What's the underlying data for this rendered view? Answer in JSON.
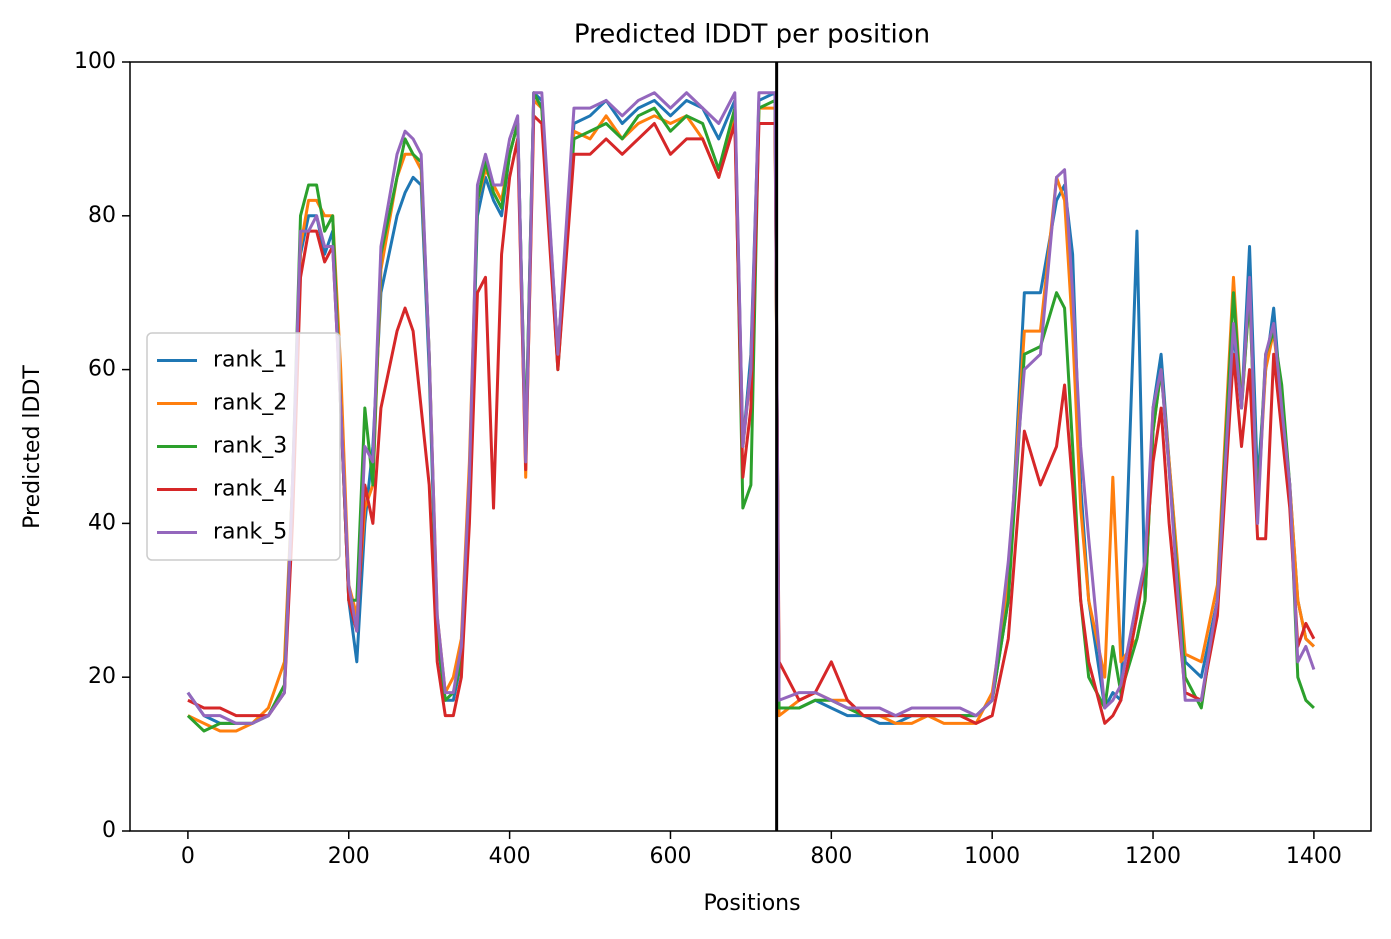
{
  "chart_data": {
    "type": "line",
    "title": "Predicted lDDT per position",
    "xlabel": "Positions",
    "ylabel": "Predicted lDDT",
    "xlim": [
      -72,
      1471
    ],
    "ylim": [
      0,
      100
    ],
    "xticks": [
      0,
      200,
      400,
      600,
      800,
      1000,
      1200,
      1400
    ],
    "yticks": [
      0,
      20,
      40,
      60,
      80,
      100
    ],
    "legend": "center left",
    "vline": 732,
    "x": [
      0,
      20,
      40,
      60,
      80,
      100,
      120,
      130,
      140,
      150,
      160,
      170,
      180,
      190,
      200,
      210,
      220,
      230,
      240,
      260,
      270,
      280,
      290,
      300,
      310,
      320,
      330,
      340,
      350,
      360,
      370,
      380,
      390,
      400,
      410,
      420,
      430,
      440,
      460,
      480,
      500,
      520,
      540,
      560,
      580,
      600,
      620,
      640,
      660,
      680,
      690,
      700,
      710,
      730,
      735,
      760,
      780,
      800,
      820,
      840,
      860,
      880,
      900,
      920,
      940,
      960,
      980,
      1000,
      1020,
      1040,
      1060,
      1080,
      1090,
      1100,
      1110,
      1120,
      1140,
      1150,
      1160,
      1180,
      1190,
      1200,
      1210,
      1220,
      1240,
      1260,
      1280,
      1300,
      1310,
      1320,
      1330,
      1340,
      1350,
      1360,
      1370,
      1380,
      1390,
      1400
    ],
    "series": [
      {
        "name": "rank_1",
        "color": "#1f77b4",
        "values": [
          18,
          15,
          14,
          14,
          14,
          15,
          18,
          45,
          75,
          80,
          80,
          75,
          78,
          55,
          30,
          22,
          40,
          50,
          70,
          80,
          83,
          85,
          84,
          60,
          25,
          17,
          17,
          22,
          45,
          80,
          85,
          82,
          80,
          88,
          92,
          50,
          96,
          95,
          62,
          92,
          93,
          95,
          92,
          94,
          95,
          93,
          95,
          94,
          90,
          95,
          50,
          62,
          95,
          96,
          16,
          16,
          17,
          16,
          15,
          15,
          14,
          14,
          15,
          15,
          15,
          15,
          15,
          17,
          30,
          70,
          70,
          82,
          84,
          75,
          45,
          30,
          16,
          18,
          17,
          78,
          30,
          55,
          62,
          48,
          22,
          20,
          30,
          65,
          55,
          76,
          45,
          60,
          68,
          55,
          45,
          30,
          25,
          24
        ]
      },
      {
        "name": "rank_2",
        "color": "#ff7f0e",
        "values": [
          15,
          14,
          13,
          13,
          14,
          16,
          22,
          45,
          76,
          82,
          82,
          80,
          80,
          60,
          32,
          28,
          42,
          45,
          73,
          85,
          88,
          88,
          86,
          62,
          28,
          18,
          20,
          25,
          48,
          82,
          86,
          84,
          82,
          88,
          92,
          46,
          95,
          94,
          62,
          91,
          90,
          93,
          90,
          92,
          93,
          92,
          93,
          90,
          85,
          93,
          50,
          60,
          94,
          94,
          15,
          17,
          18,
          17,
          17,
          15,
          15,
          14,
          14,
          15,
          14,
          14,
          14,
          18,
          32,
          65,
          65,
          85,
          82,
          65,
          42,
          30,
          20,
          46,
          22,
          25,
          30,
          52,
          60,
          48,
          23,
          22,
          32,
          72,
          55,
          70,
          42,
          60,
          65,
          55,
          45,
          30,
          25,
          24
        ]
      },
      {
        "name": "rank_3",
        "color": "#2ca02c",
        "values": [
          15,
          13,
          14,
          14,
          14,
          15,
          19,
          45,
          80,
          84,
          84,
          78,
          80,
          55,
          30,
          30,
          55,
          45,
          75,
          85,
          90,
          88,
          87,
          62,
          26,
          17,
          18,
          22,
          45,
          82,
          87,
          83,
          81,
          88,
          92,
          50,
          96,
          94,
          60,
          90,
          91,
          92,
          90,
          93,
          94,
          91,
          93,
          92,
          86,
          94,
          42,
          45,
          94,
          95,
          16,
          16,
          17,
          17,
          16,
          15,
          15,
          15,
          15,
          15,
          15,
          15,
          15,
          17,
          30,
          62,
          63,
          70,
          68,
          50,
          30,
          20,
          16,
          24,
          18,
          25,
          30,
          52,
          60,
          47,
          20,
          16,
          30,
          70,
          55,
          70,
          42,
          62,
          65,
          58,
          45,
          20,
          17,
          16
        ]
      },
      {
        "name": "rank_4",
        "color": "#d62728",
        "values": [
          17,
          16,
          16,
          15,
          15,
          15,
          18,
          40,
          72,
          78,
          78,
          74,
          76,
          55,
          30,
          26,
          45,
          40,
          55,
          65,
          68,
          65,
          55,
          45,
          22,
          15,
          15,
          20,
          40,
          70,
          72,
          42,
          75,
          85,
          90,
          47,
          93,
          92,
          60,
          88,
          88,
          90,
          88,
          90,
          92,
          88,
          90,
          90,
          85,
          92,
          46,
          55,
          92,
          92,
          22,
          17,
          18,
          22,
          17,
          15,
          15,
          15,
          15,
          15,
          15,
          15,
          14,
          15,
          25,
          52,
          45,
          50,
          58,
          45,
          30,
          22,
          14,
          15,
          17,
          28,
          35,
          48,
          55,
          40,
          18,
          17,
          28,
          62,
          50,
          60,
          38,
          38,
          62,
          52,
          42,
          24,
          27,
          25
        ]
      },
      {
        "name": "rank_5",
        "color": "#9467bd",
        "values": [
          18,
          15,
          15,
          14,
          14,
          15,
          18,
          45,
          78,
          78,
          80,
          76,
          76,
          55,
          32,
          26,
          50,
          48,
          76,
          88,
          91,
          90,
          88,
          62,
          28,
          18,
          18,
          24,
          46,
          84,
          88,
          84,
          84,
          90,
          93,
          48,
          96,
          96,
          62,
          94,
          94,
          95,
          93,
          95,
          96,
          94,
          96,
          94,
          92,
          96,
          50,
          60,
          96,
          96,
          17,
          18,
          18,
          17,
          16,
          16,
          16,
          15,
          16,
          16,
          16,
          16,
          15,
          17,
          35,
          60,
          62,
          85,
          86,
          70,
          50,
          38,
          16,
          17,
          19,
          30,
          35,
          55,
          60,
          47,
          17,
          17,
          30,
          66,
          55,
          72,
          40,
          62,
          66,
          55,
          45,
          22,
          24,
          21
        ]
      }
    ]
  }
}
